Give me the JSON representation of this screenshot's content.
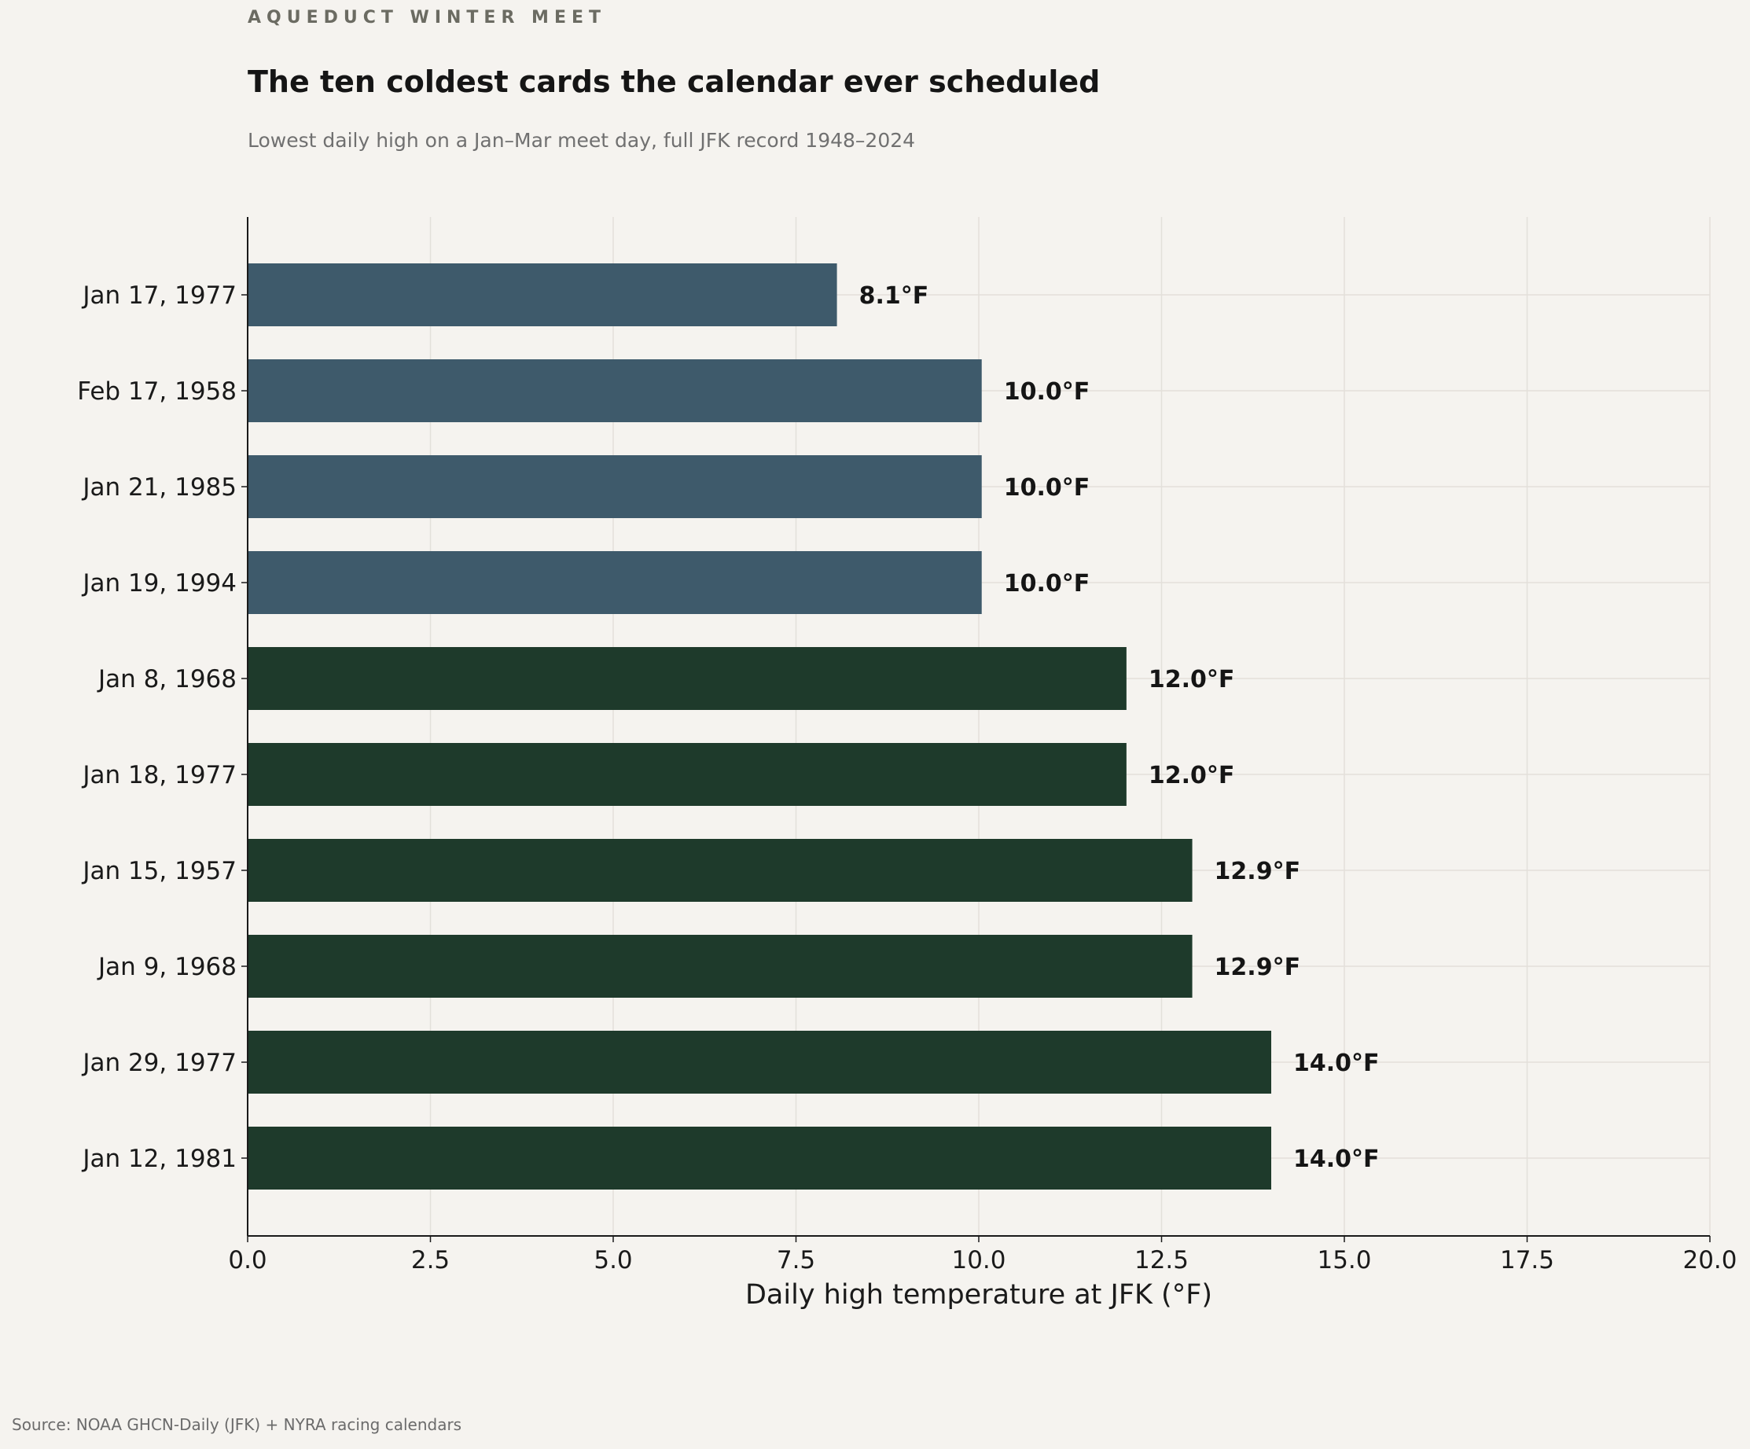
{
  "header": {
    "kicker": "AQUEDUCT WINTER MEET",
    "title": "The ten coldest cards the calendar ever scheduled",
    "subtitle": "Lowest daily high on a Jan–Mar meet day, full JFK record 1948–2024"
  },
  "footer": {
    "source": "Source: NOAA GHCN-Daily (JFK) + NYRA racing calendars"
  },
  "colors": {
    "coldest": "#3e5a6b",
    "other": "#1e3a2b",
    "grid": "#e3e0da",
    "axis": "#1a1a1a"
  },
  "chart_data": {
    "type": "bar",
    "orientation": "horizontal",
    "title": "The ten coldest cards the calendar ever scheduled",
    "xlabel": "Daily high temperature at JFK (°F)",
    "ylabel": "",
    "xlim": [
      0,
      20
    ],
    "xticks": [
      "0.0",
      "2.5",
      "5.0",
      "7.5",
      "10.0",
      "12.5",
      "15.0",
      "17.5",
      "20.0"
    ],
    "grid": true,
    "categories": [
      "Jan 17, 1977",
      "Feb 17, 1958",
      "Jan 21, 1985",
      "Jan 19, 1994",
      "Jan 8, 1968",
      "Jan 18, 1977",
      "Jan 15, 1957",
      "Jan 9, 1968",
      "Jan 29, 1977",
      "Jan 12, 1981"
    ],
    "values": [
      8.06,
      10.04,
      10.04,
      10.04,
      12.02,
      12.02,
      12.92,
      12.92,
      14.0,
      14.0
    ],
    "value_labels": [
      "8.1°F",
      "10.0°F",
      "10.0°F",
      "10.0°F",
      "12.0°F",
      "12.0°F",
      "12.9°F",
      "12.9°F",
      "14.0°F",
      "14.0°F"
    ],
    "highlight_below": 11
  }
}
